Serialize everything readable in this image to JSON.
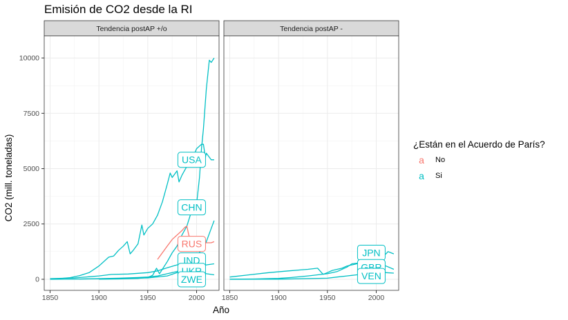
{
  "chart_data": {
    "type": "line",
    "title": "Emisión de CO2 desde la RI",
    "xlabel": "Año",
    "ylabel": "CO2 (mill. toneladas)",
    "xlim": [
      1844,
      2023
    ],
    "ylim": [
      -500,
      11000
    ],
    "xticks": [
      1850,
      1900,
      1950,
      2000
    ],
    "yticks": [
      0,
      2500,
      5000,
      7500,
      10000
    ],
    "grid": true,
    "legend": {
      "title": "¿Están en el Acuerdo de París?",
      "placement": "right",
      "entries": [
        {
          "key": "a",
          "label": "No",
          "color": "#F8766D"
        },
        {
          "key": "a",
          "label": "Si",
          "color": "#00BFC4"
        }
      ]
    },
    "panels": [
      {
        "strip": "Tendencia postAP +/o",
        "series": [
          {
            "label": "USA",
            "color": "#00BFC4",
            "x": [
              1850,
              1860,
              1870,
              1880,
              1890,
              1900,
              1910,
              1915,
              1920,
              1925,
              1929,
              1932,
              1935,
              1940,
              1944,
              1946,
              1950,
              1955,
              1960,
              1965,
              1970,
              1973,
              1975,
              1980,
              1982,
              1985,
              1990,
              1995,
              2000,
              2005,
              2007,
              2009,
              2010,
              2015,
              2018
            ],
            "y": [
              10,
              30,
              70,
              160,
              300,
              600,
              1000,
              1050,
              1300,
              1500,
              1700,
              1150,
              1300,
              1600,
              2450,
              2000,
              2300,
              2500,
              2900,
              3500,
              4300,
              4800,
              4600,
              4900,
              4400,
              4700,
              5100,
              5400,
              5900,
              6100,
              6100,
              5500,
              5700,
              5400,
              5400
            ]
          },
          {
            "label": "CHN",
            "color": "#00BFC4",
            "x": [
              1900,
              1920,
              1940,
              1950,
              1955,
              1959,
              1962,
              1970,
              1975,
              1980,
              1985,
              1990,
              1995,
              2000,
              2003,
              2005,
              2007,
              2010,
              2013,
              2015,
              2018
            ],
            "y": [
              5,
              15,
              40,
              80,
              180,
              500,
              250,
              800,
              1200,
              1500,
              2000,
              2400,
              3100,
              3400,
              4600,
              5900,
              6800,
              8600,
              9900,
              9800,
              10000
            ]
          },
          {
            "label": "RUS",
            "color": "#F8766D",
            "x": [
              1960,
              1965,
              1970,
              1975,
              1980,
              1985,
              1988,
              1990,
              1992,
              1995,
              1998,
              2000,
              2005,
              2010,
              2015,
              2018
            ],
            "y": [
              900,
              1200,
              1500,
              1800,
              2000,
              2200,
              2350,
              2400,
              2000,
              1650,
              1450,
              1500,
              1600,
              1650,
              1650,
              1700
            ]
          },
          {
            "label": "IND",
            "color": "#00BFC4",
            "x": [
              1880,
              1900,
              1920,
              1940,
              1950,
              1960,
              1970,
              1980,
              1990,
              2000,
              2010,
              2015,
              2018
            ],
            "y": [
              10,
              30,
              50,
              80,
              100,
              150,
              250,
              350,
              650,
              1000,
              1700,
              2300,
              2650
            ]
          },
          {
            "label": "UKR",
            "color": "#00BFC4",
            "x": [
              1850,
              1875,
              1900,
              1913,
              1930,
              1950,
              1960,
              1970,
              1980,
              1990,
              2000,
              2010,
              2018
            ],
            "y": [
              30,
              60,
              150,
              220,
              240,
              300,
              380,
              520,
              650,
              750,
              300,
              250,
              200
            ]
          },
          {
            "label": "ZWE",
            "color": "#00BFC4",
            "x": [
              1850,
              1900,
              1950,
              1970,
              1980,
              1990,
              2000,
              2010,
              2018
            ],
            "y": [
              0,
              20,
              60,
              150,
              300,
              450,
              550,
              650,
              700
            ]
          }
        ],
        "labels": [
          {
            "text": "USA",
            "x": 1995,
            "y": 5400,
            "color": "#00BFC4"
          },
          {
            "text": "CHN",
            "x": 1995,
            "y": 3250,
            "color": "#00BFC4"
          },
          {
            "text": "RUS",
            "x": 1995,
            "y": 1600,
            "color": "#F8766D"
          },
          {
            "text": "IND",
            "x": 1995,
            "y": 850,
            "color": "#00BFC4"
          },
          {
            "text": "UKR",
            "x": 1995,
            "y": 380,
            "color": "#00BFC4"
          },
          {
            "text": "ZWE",
            "x": 1995,
            "y": 0,
            "color": "#00BFC4"
          }
        ]
      },
      {
        "strip": "Tendencia postAP -",
        "series": [
          {
            "label": "JPN",
            "color": "#00BFC4",
            "x": [
              1850,
              1870,
              1890,
              1910,
              1930,
              1940,
              1945,
              1946,
              1950,
              1955,
              1960,
              1965,
              1970,
              1975,
              1980,
              1985,
              1990,
              1995,
              2000,
              2005,
              2010,
              2012,
              2015,
              2018
            ],
            "y": [
              100,
              200,
              300,
              380,
              450,
              500,
              250,
              230,
              300,
              400,
              450,
              500,
              600,
              650,
              700,
              750,
              900,
              950,
              1000,
              1050,
              1150,
              1250,
              1200,
              1150
            ]
          },
          {
            "label": "GBR",
            "color": "#00BFC4",
            "x": [
              1850,
              1875,
              1900,
              1913,
              1930,
              1950,
              1960,
              1970,
              1975,
              1985,
              1990,
              2000,
              2010,
              2018
            ],
            "y": [
              5,
              15,
              40,
              80,
              150,
              250,
              350,
              550,
              700,
              750,
              750,
              700,
              600,
              450
            ]
          },
          {
            "label": "VEN",
            "color": "#00BFC4",
            "x": [
              1850,
              1900,
              1950,
              1960,
              1970,
              1980,
              1990,
              2000,
              2010,
              2018
            ],
            "y": [
              0,
              5,
              50,
              100,
              150,
              200,
              250,
              300,
              300,
              280
            ]
          }
        ],
        "labels": [
          {
            "text": "JPN",
            "x": 1995,
            "y": 1200,
            "color": "#00BFC4"
          },
          {
            "text": "GBR",
            "x": 1995,
            "y": 550,
            "color": "#00BFC4"
          },
          {
            "text": "VEN",
            "x": 1995,
            "y": 150,
            "color": "#00BFC4"
          }
        ]
      }
    ]
  }
}
